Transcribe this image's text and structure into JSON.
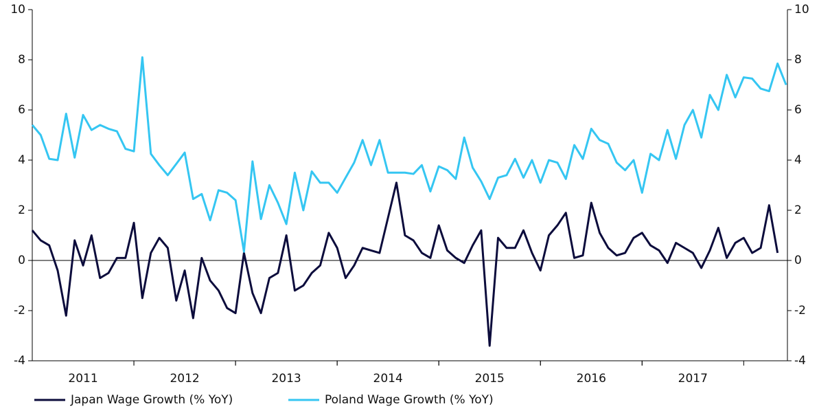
{
  "chart_data": {
    "type": "line",
    "x": [
      2011,
      2011.083,
      2011.167,
      2011.25,
      2011.333,
      2011.417,
      2011.5,
      2011.583,
      2011.667,
      2011.75,
      2011.833,
      2011.917,
      2012,
      2012.083,
      2012.167,
      2012.25,
      2012.333,
      2012.417,
      2012.5,
      2012.583,
      2012.667,
      2012.75,
      2012.833,
      2012.917,
      2013,
      2013.083,
      2013.167,
      2013.25,
      2013.333,
      2013.417,
      2013.5,
      2013.583,
      2013.667,
      2013.75,
      2013.833,
      2013.917,
      2014,
      2014.083,
      2014.167,
      2014.25,
      2014.333,
      2014.417,
      2014.5,
      2014.583,
      2014.667,
      2014.75,
      2014.833,
      2014.917,
      2015,
      2015.083,
      2015.167,
      2015.25,
      2015.333,
      2015.417,
      2015.5,
      2015.583,
      2015.667,
      2015.75,
      2015.833,
      2015.917,
      2016,
      2016.083,
      2016.167,
      2016.25,
      2016.333,
      2016.417,
      2016.5,
      2016.583,
      2016.667,
      2016.75,
      2016.833,
      2016.917,
      2017,
      2017.083,
      2017.167,
      2017.25,
      2017.333,
      2017.417,
      2017.5,
      2017.583,
      2017.667,
      2017.75,
      2017.833,
      2017.917,
      2018,
      2018.083,
      2018.167,
      2018.25,
      2018.333,
      2018.417
    ],
    "series": [
      {
        "name": "Japan Wage Growth (% YoY)",
        "color": "#0c0c3c",
        "values": [
          1.2,
          0.8,
          0.6,
          -0.4,
          -2.2,
          0.8,
          -0.2,
          1.0,
          -0.7,
          -0.5,
          0.1,
          0.1,
          1.5,
          -1.5,
          0.3,
          0.9,
          0.5,
          -1.6,
          -0.4,
          -2.3,
          0.1,
          -0.8,
          -1.2,
          -1.9,
          -2.1,
          0.3,
          -1.3,
          -2.1,
          -0.7,
          -0.5,
          1.0,
          -1.2,
          -1.0,
          -0.5,
          -0.2,
          1.1,
          0.5,
          -0.7,
          -0.2,
          0.5,
          0.4,
          0.3,
          1.7,
          3.1,
          1.0,
          0.8,
          0.3,
          0.1,
          1.4,
          0.4,
          0.1,
          -0.1,
          0.6,
          1.2,
          -3.4,
          0.9,
          0.5,
          0.5,
          1.2,
          0.3,
          -0.4,
          1.0,
          1.4,
          1.9,
          0.1,
          0.2,
          2.3,
          1.1,
          0.5,
          0.2,
          0.3,
          0.9,
          1.1,
          0.6,
          0.4,
          -0.1,
          0.7,
          0.5,
          0.3,
          -0.3,
          0.4,
          1.3,
          0.1,
          0.7,
          0.9,
          0.3,
          0.5,
          2.2,
          0.3,
          null
        ]
      },
      {
        "name": "Poland Wage Growth (% YoY)",
        "color": "#35c6f2",
        "values": [
          5.4,
          5.0,
          4.05,
          4.0,
          5.85,
          4.1,
          5.8,
          5.2,
          5.4,
          5.25,
          5.15,
          4.45,
          4.35,
          8.1,
          4.25,
          3.8,
          3.4,
          3.85,
          4.3,
          2.45,
          2.65,
          1.6,
          2.8,
          2.7,
          2.4,
          0.35,
          3.95,
          1.65,
          3.0,
          2.3,
          1.45,
          3.5,
          2.0,
          3.55,
          3.1,
          3.1,
          2.7,
          3.3,
          3.9,
          4.8,
          3.8,
          4.8,
          3.5,
          3.5,
          3.5,
          3.45,
          3.8,
          2.75,
          3.75,
          3.6,
          3.25,
          4.9,
          3.7,
          3.15,
          2.45,
          3.3,
          3.4,
          4.05,
          3.3,
          4.0,
          3.1,
          4.0,
          3.9,
          3.25,
          4.6,
          4.05,
          5.25,
          4.8,
          4.65,
          3.9,
          3.6,
          4.0,
          2.7,
          4.25,
          4.0,
          5.2,
          4.05,
          5.4,
          6.0,
          4.9,
          6.6,
          6.0,
          7.4,
          6.5,
          7.3,
          7.25,
          6.85,
          6.75,
          7.85,
          7.0
        ]
      }
    ],
    "xlim": [
      2011,
      2018.43
    ],
    "xticks": [
      {
        "value": 2011.5,
        "label": "2011"
      },
      {
        "value": 2012.5,
        "label": "2012"
      },
      {
        "value": 2013.5,
        "label": "2013"
      },
      {
        "value": 2014.5,
        "label": "2014"
      },
      {
        "value": 2015.5,
        "label": "2015"
      },
      {
        "value": 2016.5,
        "label": "2016"
      },
      {
        "value": 2017.5,
        "label": "2017"
      }
    ],
    "ylim": [
      -4,
      10
    ],
    "yticks": [
      -4,
      -2,
      0,
      2,
      4,
      6,
      8,
      10
    ],
    "y2lim": [
      -4,
      10
    ],
    "y2ticks": [
      -4,
      -2,
      0,
      2,
      4,
      6,
      8,
      10
    ],
    "legend": "bottom"
  }
}
